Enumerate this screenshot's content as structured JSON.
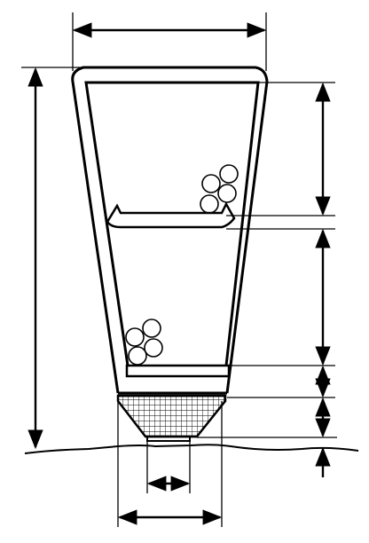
{
  "diagram": {
    "kind": "technical-drawing",
    "stroke_color": "#000000",
    "background": "#ffffff",
    "labels": [],
    "components": [
      "tapered-container",
      "upper-deflector",
      "lower-plate",
      "mesh-base",
      "spheres-upper",
      "spheres-lower",
      "ground-line",
      "dimension-lines"
    ]
  }
}
